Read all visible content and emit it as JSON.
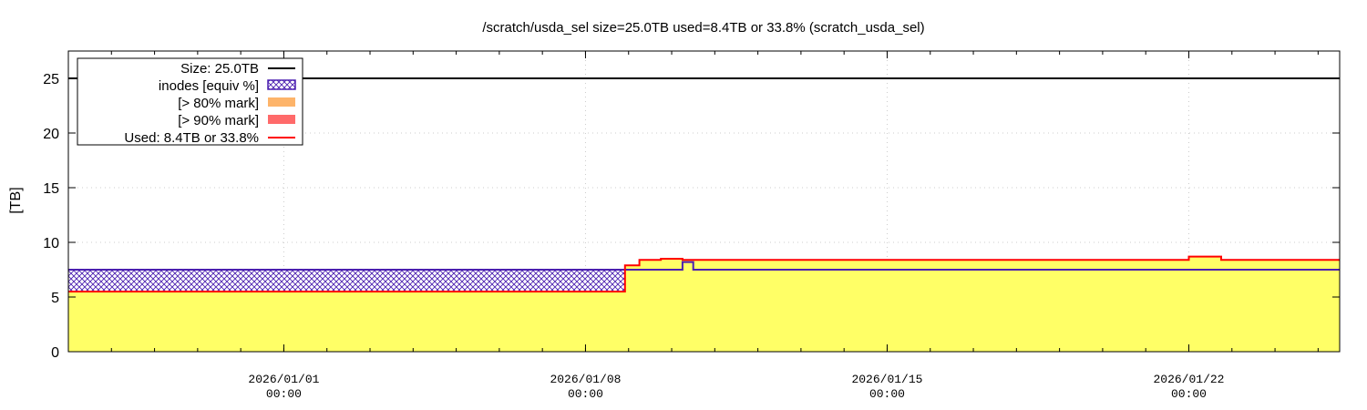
{
  "chart_data": {
    "type": "area",
    "title": "/scratch/usda_sel size=25.0TB used=8.4TB or 33.8% (scratch_usda_sel)",
    "ylabel": "[TB]",
    "xlabel": "",
    "ylim": [
      0,
      27.5
    ],
    "yticks": [
      0,
      5,
      10,
      15,
      20,
      25
    ],
    "xlim": [
      "2025-12-27T00:00",
      "2026-01-25T12:00"
    ],
    "xticks": [
      {
        "date": "2026-01-01T00:00",
        "line1": "2026/01/01",
        "line2": "00:00"
      },
      {
        "date": "2026-01-08T00:00",
        "line1": "2026/01/08",
        "line2": "00:00"
      },
      {
        "date": "2026-01-15T00:00",
        "line1": "2026/01/15",
        "line2": "00:00"
      },
      {
        "date": "2026-01-22T00:00",
        "line1": "2026/01/22",
        "line2": "00:00"
      }
    ],
    "grid": true,
    "legend_position": "top-left",
    "colors": {
      "size": "#000000",
      "inodes": "#4b1fb0",
      "fill": "#ffff66",
      "mark80": "#fdb46a",
      "mark90": "#ff6a6a",
      "used": "#ff0000",
      "grid": "#cccccc"
    },
    "series": [
      {
        "key": "size",
        "name": "Size: 25.0TB",
        "style": "line",
        "points": [
          [
            "2025-12-27T00:00",
            25.0
          ],
          [
            "2026-01-25T12:00",
            25.0
          ]
        ]
      },
      {
        "key": "inodes",
        "name": "inodes [equiv %]",
        "style": "hatched-step",
        "points": [
          [
            "2025-12-27T00:00",
            7.5
          ],
          [
            "2026-01-09T00:00",
            7.5
          ],
          [
            "2026-01-10T06:00",
            8.2
          ],
          [
            "2026-01-10T12:00",
            7.5
          ],
          [
            "2026-01-25T12:00",
            7.5
          ]
        ]
      },
      {
        "key": "mark80",
        "name": "[> 80% mark]",
        "style": "fill",
        "points": []
      },
      {
        "key": "mark90",
        "name": "[> 90% mark]",
        "style": "fill",
        "points": []
      },
      {
        "key": "used",
        "name": "Used: 8.4TB or 33.8%",
        "style": "filled-step",
        "points": [
          [
            "2025-12-27T00:00",
            5.5
          ],
          [
            "2026-01-08T22:00",
            7.9
          ],
          [
            "2026-01-09T06:00",
            8.4
          ],
          [
            "2026-01-09T18:00",
            8.5
          ],
          [
            "2026-01-10T06:00",
            8.4
          ],
          [
            "2026-01-22T00:00",
            8.7
          ],
          [
            "2026-01-22T18:00",
            8.4
          ],
          [
            "2026-01-25T12:00",
            8.4
          ]
        ]
      }
    ]
  }
}
